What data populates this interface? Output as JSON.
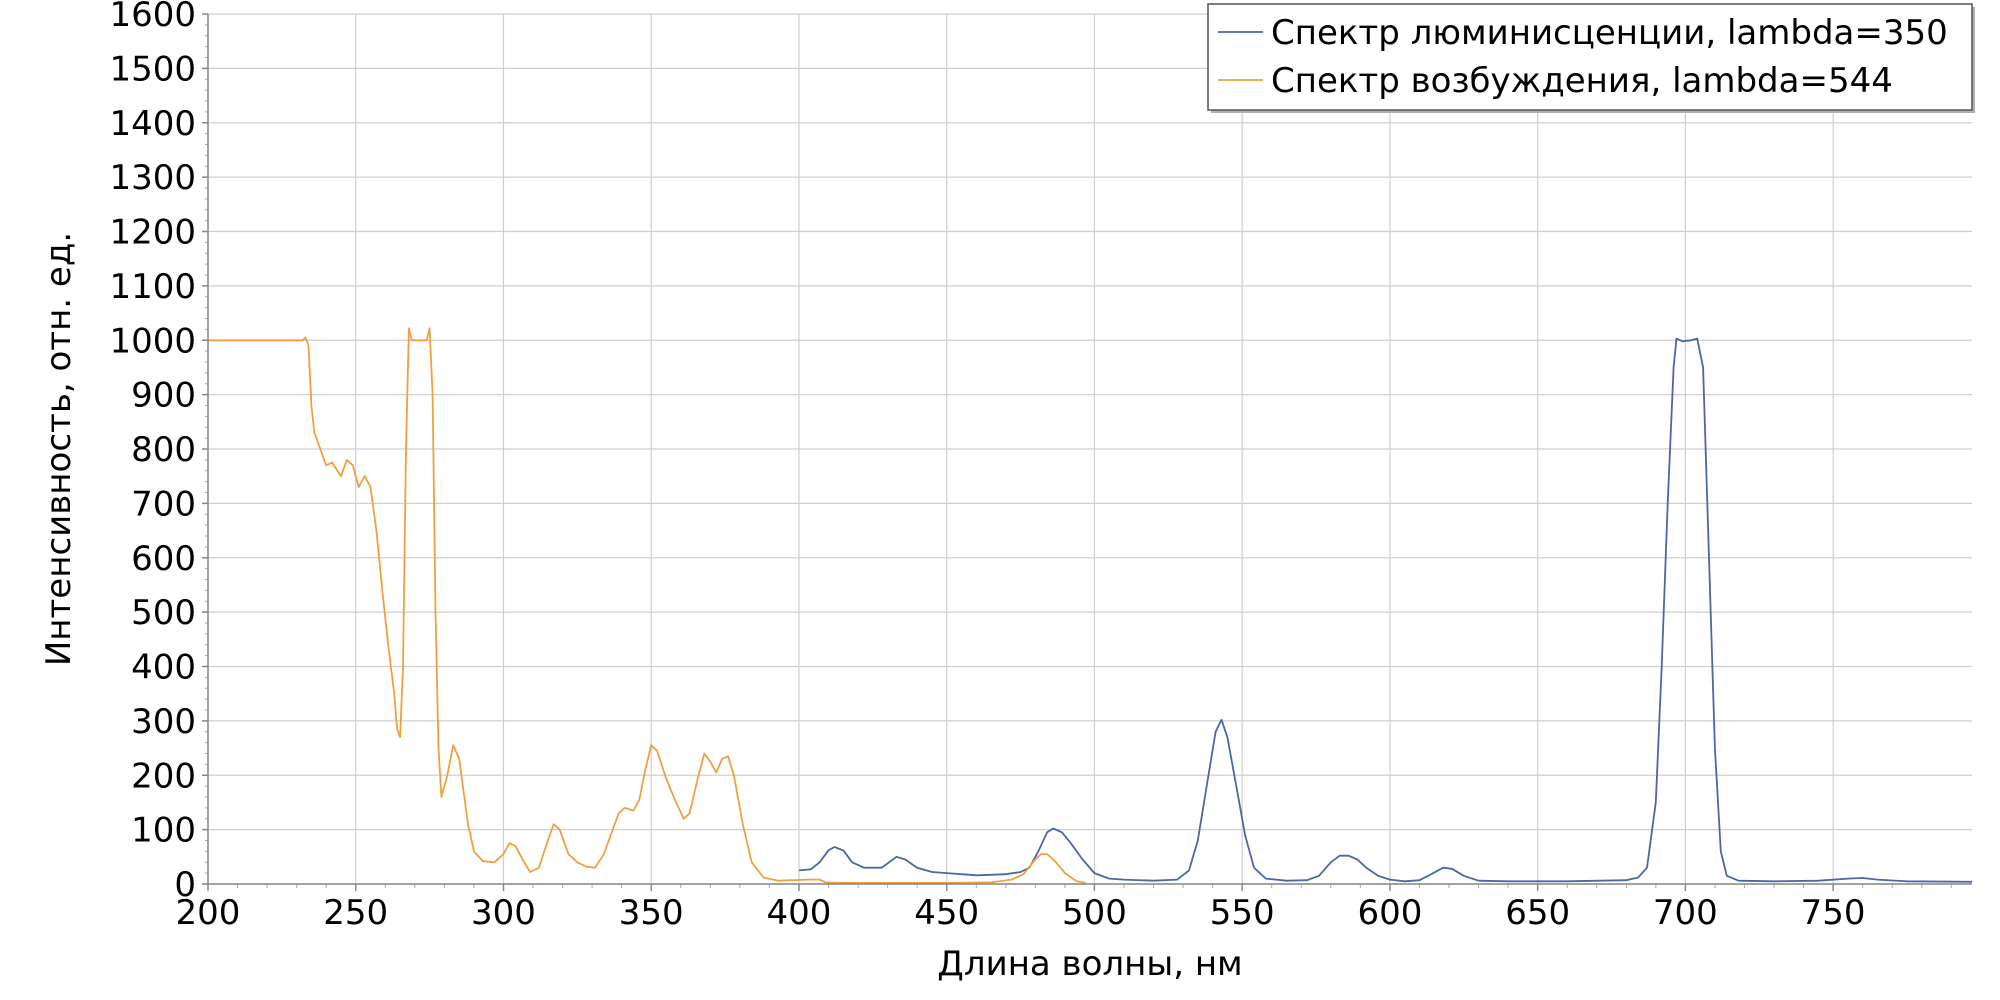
{
  "chart_data": {
    "type": "line",
    "title": "",
    "xlabel": "Длина волны, нм",
    "ylabel": "Интенсивность, отн. ед.",
    "xlim": [
      200,
      797
    ],
    "ylim": [
      0,
      1600
    ],
    "xticks": [
      200,
      250,
      300,
      350,
      400,
      450,
      500,
      550,
      600,
      650,
      700,
      750
    ],
    "yticks": [
      0,
      100,
      200,
      300,
      400,
      500,
      600,
      700,
      800,
      900,
      1000,
      1100,
      1200,
      1300,
      1400,
      1500,
      1600
    ],
    "grid": true,
    "legend_position": "top-right",
    "series": [
      {
        "name": "Спектр люминисценции, lambda=350",
        "color": "#4a67a8",
        "points": [
          [
            400,
            25
          ],
          [
            404,
            27
          ],
          [
            407,
            40
          ],
          [
            410,
            62
          ],
          [
            412,
            68
          ],
          [
            415,
            62
          ],
          [
            418,
            40
          ],
          [
            422,
            30
          ],
          [
            428,
            30
          ],
          [
            431,
            42
          ],
          [
            433,
            50
          ],
          [
            436,
            45
          ],
          [
            440,
            30
          ],
          [
            445,
            22
          ],
          [
            450,
            20
          ],
          [
            455,
            18
          ],
          [
            460,
            16
          ],
          [
            465,
            17
          ],
          [
            470,
            18
          ],
          [
            475,
            22
          ],
          [
            478,
            30
          ],
          [
            481,
            60
          ],
          [
            484,
            95
          ],
          [
            486,
            102
          ],
          [
            489,
            95
          ],
          [
            492,
            75
          ],
          [
            496,
            45
          ],
          [
            500,
            20
          ],
          [
            505,
            10
          ],
          [
            510,
            8
          ],
          [
            520,
            6
          ],
          [
            528,
            8
          ],
          [
            532,
            25
          ],
          [
            535,
            80
          ],
          [
            538,
            180
          ],
          [
            541,
            280
          ],
          [
            543,
            302
          ],
          [
            545,
            270
          ],
          [
            548,
            180
          ],
          [
            551,
            90
          ],
          [
            554,
            30
          ],
          [
            558,
            10
          ],
          [
            565,
            6
          ],
          [
            572,
            7
          ],
          [
            576,
            15
          ],
          [
            580,
            40
          ],
          [
            583,
            52
          ],
          [
            586,
            52
          ],
          [
            589,
            45
          ],
          [
            592,
            30
          ],
          [
            596,
            15
          ],
          [
            600,
            8
          ],
          [
            605,
            5
          ],
          [
            610,
            7
          ],
          [
            614,
            18
          ],
          [
            618,
            30
          ],
          [
            621,
            28
          ],
          [
            625,
            15
          ],
          [
            630,
            6
          ],
          [
            640,
            5
          ],
          [
            660,
            5
          ],
          [
            680,
            7
          ],
          [
            684,
            12
          ],
          [
            687,
            30
          ],
          [
            690,
            150
          ],
          [
            692,
            400
          ],
          [
            694,
            700
          ],
          [
            696,
            950
          ],
          [
            697,
            1003
          ],
          [
            699,
            998
          ],
          [
            702,
            1000
          ],
          [
            704,
            1003
          ],
          [
            706,
            950
          ],
          [
            708,
            600
          ],
          [
            710,
            250
          ],
          [
            712,
            60
          ],
          [
            714,
            15
          ],
          [
            718,
            6
          ],
          [
            730,
            5
          ],
          [
            745,
            6
          ],
          [
            755,
            10
          ],
          [
            760,
            11
          ],
          [
            765,
            8
          ],
          [
            775,
            5
          ],
          [
            797,
            4
          ]
        ]
      },
      {
        "name": "Спектр возбуждения, lambda=544",
        "color": "#f0a040",
        "points": [
          [
            200,
            1000
          ],
          [
            232,
            1000
          ],
          [
            233,
            1005
          ],
          [
            234,
            990
          ],
          [
            235,
            880
          ],
          [
            236,
            830
          ],
          [
            238,
            800
          ],
          [
            240,
            770
          ],
          [
            242,
            775
          ],
          [
            245,
            750
          ],
          [
            247,
            780
          ],
          [
            249,
            770
          ],
          [
            251,
            730
          ],
          [
            253,
            750
          ],
          [
            255,
            730
          ],
          [
            257,
            650
          ],
          [
            259,
            540
          ],
          [
            261,
            440
          ],
          [
            263,
            350
          ],
          [
            264,
            285
          ],
          [
            265,
            270
          ],
          [
            266,
            400
          ],
          [
            267,
            800
          ],
          [
            268,
            1022
          ],
          [
            269,
            1000
          ],
          [
            274,
            1000
          ],
          [
            275,
            1022
          ],
          [
            276,
            900
          ],
          [
            277,
            500
          ],
          [
            278,
            250
          ],
          [
            279,
            160
          ],
          [
            281,
            200
          ],
          [
            283,
            255
          ],
          [
            285,
            230
          ],
          [
            288,
            110
          ],
          [
            290,
            60
          ],
          [
            293,
            42
          ],
          [
            297,
            40
          ],
          [
            300,
            55
          ],
          [
            302,
            75
          ],
          [
            304,
            70
          ],
          [
            307,
            40
          ],
          [
            309,
            22
          ],
          [
            312,
            30
          ],
          [
            315,
            80
          ],
          [
            317,
            110
          ],
          [
            319,
            100
          ],
          [
            322,
            55
          ],
          [
            325,
            40
          ],
          [
            328,
            32
          ],
          [
            331,
            30
          ],
          [
            334,
            55
          ],
          [
            337,
            100
          ],
          [
            339,
            130
          ],
          [
            341,
            140
          ],
          [
            344,
            135
          ],
          [
            346,
            155
          ],
          [
            348,
            210
          ],
          [
            350,
            255
          ],
          [
            352,
            245
          ],
          [
            355,
            195
          ],
          [
            358,
            155
          ],
          [
            361,
            120
          ],
          [
            363,
            130
          ],
          [
            366,
            200
          ],
          [
            368,
            240
          ],
          [
            370,
            225
          ],
          [
            372,
            205
          ],
          [
            374,
            230
          ],
          [
            376,
            235
          ],
          [
            378,
            200
          ],
          [
            381,
            110
          ],
          [
            384,
            40
          ],
          [
            388,
            12
          ],
          [
            393,
            6
          ],
          [
            398,
            7
          ],
          [
            403,
            8
          ],
          [
            407,
            8
          ],
          [
            409,
            3
          ],
          [
            415,
            2
          ],
          [
            430,
            2
          ],
          [
            450,
            2
          ],
          [
            465,
            3
          ],
          [
            472,
            8
          ],
          [
            476,
            18
          ],
          [
            480,
            45
          ],
          [
            482,
            55
          ],
          [
            484,
            55
          ],
          [
            487,
            40
          ],
          [
            490,
            20
          ],
          [
            494,
            5
          ],
          [
            497,
            2
          ]
        ]
      }
    ]
  }
}
